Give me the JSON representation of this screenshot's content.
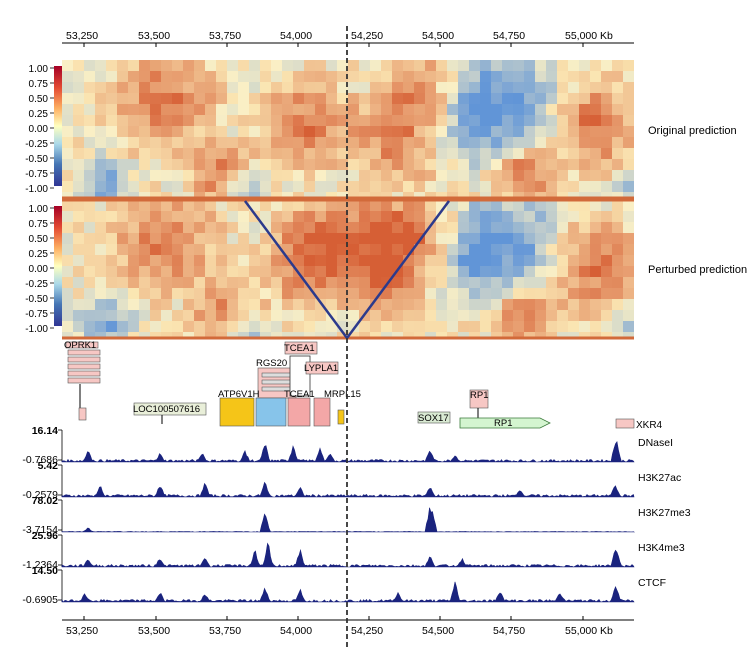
{
  "axis": {
    "ticks_top": [
      "53,250",
      "53,500",
      "53,750",
      "54,000",
      "54,250",
      "54,500",
      "54,750",
      "55,000 Kb"
    ],
    "ticks_bottom": [
      "53,250",
      "53,500",
      "53,750",
      "54,000",
      "54,250",
      "54,500",
      "54,750",
      "55,000 Kb"
    ]
  },
  "heatmaps": [
    {
      "label": "Original prediction",
      "colorbar": [
        "1.00",
        "0.75",
        "0.50",
        "0.25",
        "0.00",
        "-0.25",
        "-0.50",
        "-0.75",
        "-1.00"
      ]
    },
    {
      "label": "Perturbed prediction",
      "colorbar": [
        "1.00",
        "0.75",
        "0.50",
        "0.25",
        "0.00",
        "-0.25",
        "-0.50",
        "-0.75",
        "-1.00"
      ]
    }
  ],
  "genes": [
    {
      "name": "OPRK1"
    },
    {
      "name": "RGS20"
    },
    {
      "name": "TCEA1"
    },
    {
      "name": "LYPLA1"
    },
    {
      "name": "ATP6V1H"
    },
    {
      "name": "TCEA1"
    },
    {
      "name": "MRPL15"
    },
    {
      "name": "LOC100507616"
    },
    {
      "name": "RP1"
    },
    {
      "name": "SOX17"
    },
    {
      "name": "RP1"
    },
    {
      "name": "XKR4"
    }
  ],
  "tracks": [
    {
      "name": "DNaseI",
      "max": "16.14",
      "min": "-0.7686",
      "color": "#1a237e"
    },
    {
      "name": "H3K27ac",
      "max": "5.42",
      "min": "-0.2579",
      "color": "#1a237e"
    },
    {
      "name": "H3K27me3",
      "max": "78.02",
      "min": "-3.7154",
      "color": "#1a237e"
    },
    {
      "name": "H3K4me3",
      "max": "25.96",
      "min": "-1.2364",
      "color": "#1a237e"
    },
    {
      "name": "CTCF",
      "max": "14.50",
      "min": "-0.6905",
      "color": "#1a237e"
    }
  ]
}
